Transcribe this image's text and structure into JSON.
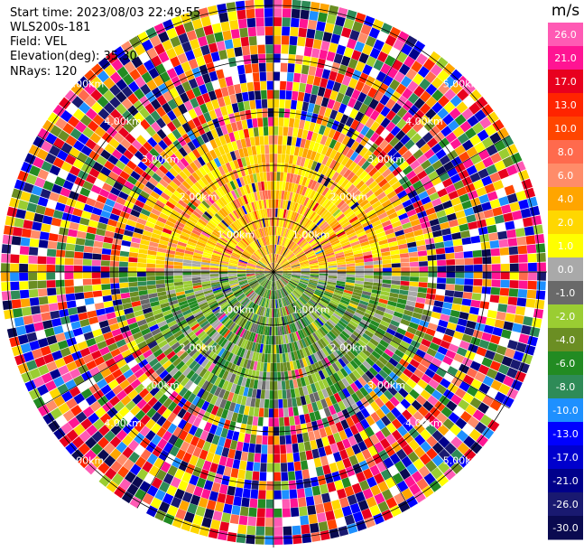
{
  "header": {
    "start_time": "Start time: 2023/08/03 22:49:55",
    "instrument": "WLS200s-181",
    "field": "Field: VEL",
    "elevation": "Elevation(deg): 35.30",
    "nrays": "NRays: 120"
  },
  "chart_data": {
    "type": "heatmap",
    "subtype": "polar-ppi",
    "field": "VEL",
    "n_rays": 120,
    "ring_labels": [
      "1.00km",
      "2.00km",
      "3.00km",
      "4.00km",
      "5.00km"
    ],
    "grid": true,
    "colorbar": {
      "unit": "m/s",
      "ticks": [
        "26.0",
        "21.0",
        "17.0",
        "13.0",
        "10.0",
        "8.0",
        "6.0",
        "4.0",
        "2.0",
        "1.0",
        "0.0",
        "-1.0",
        "-2.0",
        "-4.0",
        "-6.0",
        "-8.0",
        "-10.0",
        "-13.0",
        "-17.0",
        "-21.0",
        "-26.0",
        "-30.0"
      ],
      "colors": [
        "#ff5ab4",
        "#ff1493",
        "#e8001e",
        "#ff2400",
        "#ff4500",
        "#ff6a4d",
        "#ff8c69",
        "#ffa500",
        "#ffd700",
        "#ffff00",
        "#a9a9a9",
        "#696969",
        "#9acd32",
        "#6b8e23",
        "#228b22",
        "#2e8b57",
        "#1e90ff",
        "#0000ff",
        "#0000cd",
        "#00008b",
        "#191970",
        "#0a0a50"
      ]
    }
  }
}
